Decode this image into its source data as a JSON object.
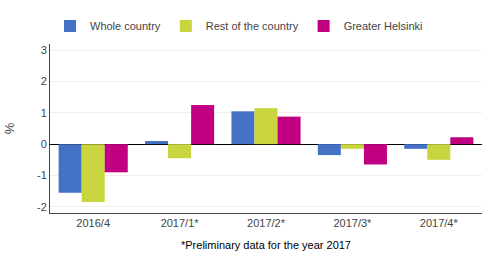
{
  "chart_data": {
    "type": "bar",
    "categories": [
      "2016/4",
      "2017/1*",
      "2017/2*",
      "2017/3*",
      "2017/4*"
    ],
    "series": [
      {
        "name": "Whole country",
        "color": "#4472c4",
        "values": [
          -1.55,
          0.1,
          1.05,
          -0.35,
          -0.15
        ]
      },
      {
        "name": "Rest of the country",
        "color": "#c8d53e",
        "values": [
          -1.85,
          -0.45,
          1.15,
          -0.15,
          -0.5
        ]
      },
      {
        "name": "Greater Helsinki",
        "color": "#c00080",
        "values": [
          -0.9,
          1.25,
          0.88,
          -0.65,
          0.22
        ]
      }
    ],
    "ylabel": "%",
    "footnote": "*Preliminary data for the year 2017",
    "ylim": [
      -2.2,
      3.2
    ],
    "yticks": [
      -2,
      -1,
      0,
      1,
      2,
      3
    ],
    "grid": true,
    "legend": "top left"
  }
}
